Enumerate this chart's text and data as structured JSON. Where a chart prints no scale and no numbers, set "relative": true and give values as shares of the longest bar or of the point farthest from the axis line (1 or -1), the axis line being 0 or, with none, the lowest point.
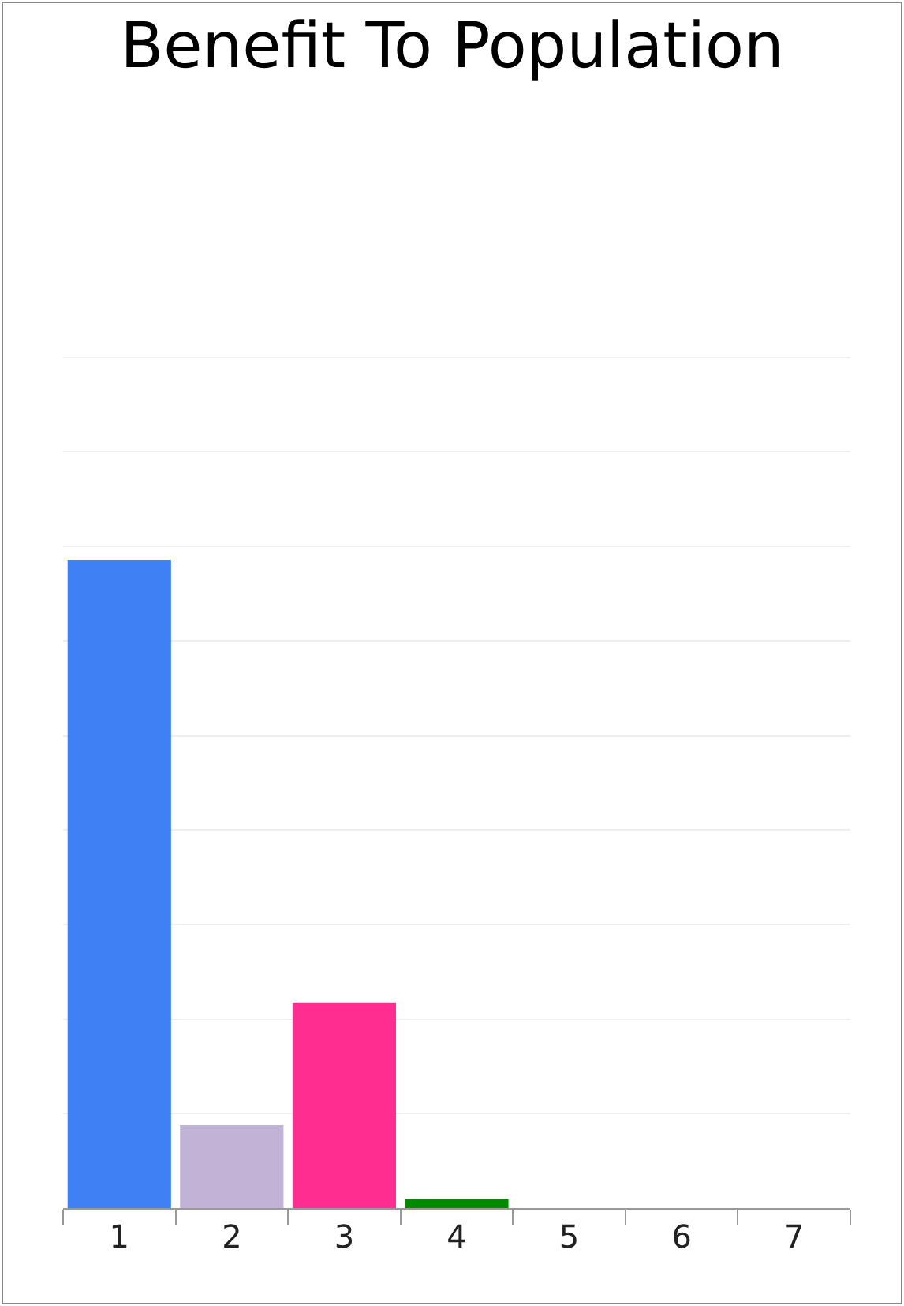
{
  "chart_data": {
    "type": "bar",
    "title": "Benefit To Population",
    "relative": true,
    "grid": "y",
    "categories": [
      "1",
      "2",
      "3",
      "4",
      "5",
      "6",
      "7"
    ],
    "values": [
      1,
      0.128,
      0.317,
      0.014,
      0,
      0,
      0
    ],
    "colors": [
      "#4080f5",
      "#c0b3d6",
      "#ff2d8f",
      "#008a00",
      "#4080f5",
      "#4080f5",
      "#4080f5"
    ]
  }
}
